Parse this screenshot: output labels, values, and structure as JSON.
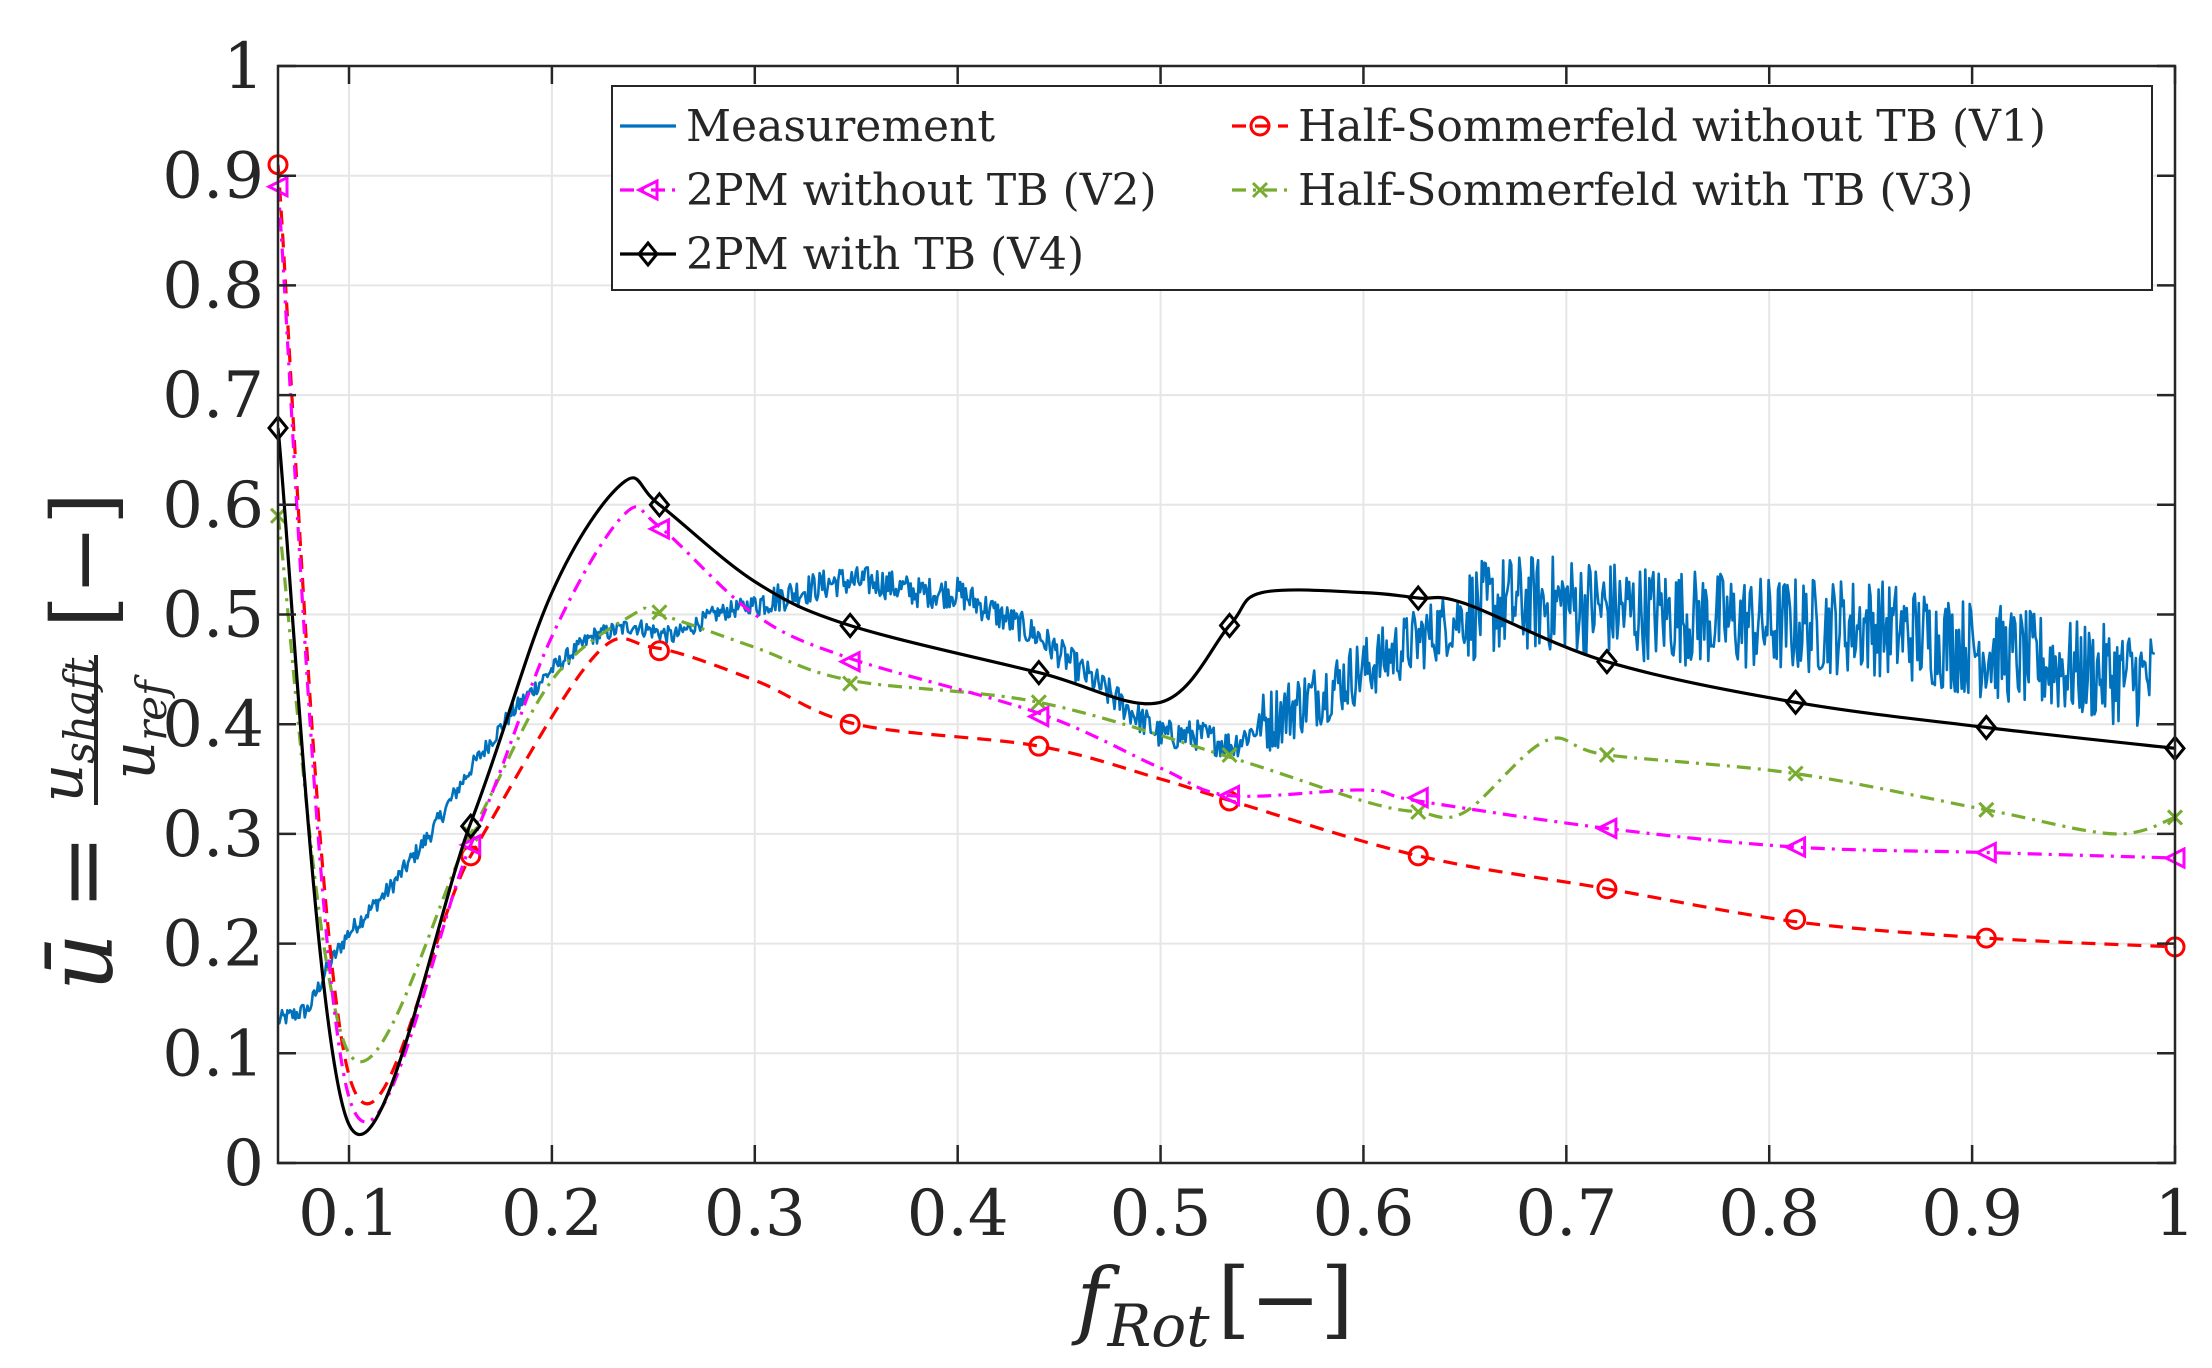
{
  "chart_data": {
    "type": "line",
    "title": "",
    "xlabel": "f_Rot [−]",
    "xlabel_parts": {
      "symbol": "f",
      "subscript": "Rot",
      "unit": "[−]"
    },
    "ylabel": "ū = u_shaft / u_ref [−]",
    "ylabel_parts": {
      "symbol": "ū",
      "equals": "=",
      "numerator": "u",
      "numerator_sub": "shaft",
      "denominator": "u",
      "denominator_sub": "ref",
      "unit": "[−]"
    },
    "xlim": [
      0.065,
      1.0
    ],
    "ylim": [
      0,
      1
    ],
    "grid": true,
    "legend_position": "top-right",
    "x_ticks": [
      "0.1",
      "0.2",
      "0.3",
      "0.4",
      "0.5",
      "0.6",
      "0.7",
      "0.8",
      "0.9",
      "1"
    ],
    "y_ticks": [
      "0",
      "0.1",
      "0.2",
      "0.3",
      "0.4",
      "0.5",
      "0.6",
      "0.7",
      "0.8",
      "0.9",
      "1"
    ],
    "series": [
      {
        "name": "Measurement",
        "color": "#0072BD",
        "style": "solid",
        "marker": "none",
        "x": [
          0.065,
          0.08,
          0.09,
          0.1,
          0.12,
          0.14,
          0.16,
          0.18,
          0.2,
          0.22,
          0.24,
          0.26,
          0.28,
          0.3,
          0.32,
          0.34,
          0.36,
          0.38,
          0.4,
          0.42,
          0.44,
          0.46,
          0.48,
          0.5,
          0.52,
          0.535,
          0.55,
          0.57,
          0.59,
          0.61,
          0.63,
          0.65,
          0.67,
          0.7,
          0.75,
          0.8,
          0.85,
          0.9,
          0.95,
          0.99
        ],
        "y": [
          0.13,
          0.14,
          0.18,
          0.21,
          0.25,
          0.3,
          0.36,
          0.41,
          0.45,
          0.48,
          0.49,
          0.48,
          0.5,
          0.51,
          0.52,
          0.53,
          0.53,
          0.52,
          0.52,
          0.5,
          0.48,
          0.45,
          0.42,
          0.39,
          0.39,
          0.38,
          0.4,
          0.42,
          0.44,
          0.46,
          0.48,
          0.5,
          0.51,
          0.51,
          0.5,
          0.49,
          0.49,
          0.47,
          0.45,
          0.44
        ]
      },
      {
        "name": "Half-Sommerfeld without TB (V1)",
        "color": "#FF0000",
        "style": "dashed",
        "marker": "circle",
        "x": [
          0.065,
          0.1,
          0.16,
          0.22,
          0.25,
          0.3,
          0.35,
          0.44,
          0.5,
          0.535,
          0.627,
          0.72,
          0.813,
          0.907,
          1.0
        ],
        "y": [
          0.91,
          0.08,
          0.28,
          0.46,
          0.47,
          0.44,
          0.4,
          0.38,
          0.35,
          0.33,
          0.28,
          0.25,
          0.22,
          0.205,
          0.197
        ],
        "marker_x": [
          0.065,
          0.16,
          0.253,
          0.347,
          0.44,
          0.534,
          0.627,
          0.72,
          0.813,
          0.907,
          1.0
        ],
        "marker_y": [
          0.91,
          0.28,
          0.467,
          0.4,
          0.38,
          0.33,
          0.28,
          0.25,
          0.222,
          0.205,
          0.197
        ]
      },
      {
        "name": "2PM without TB (V2)",
        "color": "#FF00FF",
        "style": "dash-dot",
        "marker": "triangle-left",
        "x": [
          0.065,
          0.1,
          0.16,
          0.2,
          0.235,
          0.253,
          0.3,
          0.347,
          0.44,
          0.5,
          0.534,
          0.6,
          0.627,
          0.72,
          0.813,
          0.907,
          1.0
        ],
        "y": [
          0.89,
          0.06,
          0.29,
          0.48,
          0.59,
          0.58,
          0.5,
          0.46,
          0.41,
          0.36,
          0.335,
          0.34,
          0.33,
          0.305,
          0.288,
          0.283,
          0.278
        ],
        "marker_x": [
          0.065,
          0.16,
          0.253,
          0.347,
          0.44,
          0.534,
          0.627,
          0.72,
          0.813,
          0.907,
          1.0
        ],
        "marker_y": [
          0.89,
          0.29,
          0.578,
          0.457,
          0.407,
          0.335,
          0.333,
          0.305,
          0.288,
          0.283,
          0.278
        ]
      },
      {
        "name": "Half-Sommerfeld with TB (V3)",
        "color": "#77AC30",
        "style": "dash-dot",
        "marker": "x",
        "x": [
          0.065,
          0.1,
          0.16,
          0.2,
          0.24,
          0.253,
          0.3,
          0.347,
          0.44,
          0.534,
          0.6,
          0.627,
          0.65,
          0.69,
          0.72,
          0.813,
          0.907,
          0.97,
          1.0
        ],
        "y": [
          0.59,
          0.1,
          0.3,
          0.44,
          0.5,
          0.5,
          0.47,
          0.44,
          0.42,
          0.37,
          0.33,
          0.32,
          0.32,
          0.385,
          0.372,
          0.355,
          0.322,
          0.3,
          0.315
        ],
        "marker_x": [
          0.065,
          0.16,
          0.253,
          0.347,
          0.44,
          0.534,
          0.627,
          0.72,
          0.813,
          0.907,
          1.0
        ],
        "marker_y": [
          0.59,
          0.3,
          0.502,
          0.437,
          0.42,
          0.372,
          0.32,
          0.372,
          0.355,
          0.322,
          0.315
        ]
      },
      {
        "name": "2PM with TB (V4)",
        "color": "#000000",
        "style": "solid",
        "marker": "diamond",
        "x": [
          0.065,
          0.1,
          0.16,
          0.2,
          0.235,
          0.253,
          0.3,
          0.347,
          0.44,
          0.5,
          0.534,
          0.55,
          0.6,
          0.627,
          0.65,
          0.72,
          0.813,
          0.907,
          1.0
        ],
        "y": [
          0.67,
          0.035,
          0.31,
          0.52,
          0.62,
          0.6,
          0.53,
          0.49,
          0.447,
          0.42,
          0.49,
          0.52,
          0.52,
          0.515,
          0.51,
          0.457,
          0.42,
          0.397,
          0.378
        ],
        "marker_x": [
          0.065,
          0.16,
          0.253,
          0.347,
          0.44,
          0.534,
          0.627,
          0.72,
          0.813,
          0.907,
          1.0
        ],
        "marker_y": [
          0.67,
          0.307,
          0.6,
          0.49,
          0.447,
          0.49,
          0.515,
          0.457,
          0.42,
          0.397,
          0.378
        ]
      }
    ],
    "legend_order": [
      0,
      1,
      2,
      3,
      4
    ]
  }
}
